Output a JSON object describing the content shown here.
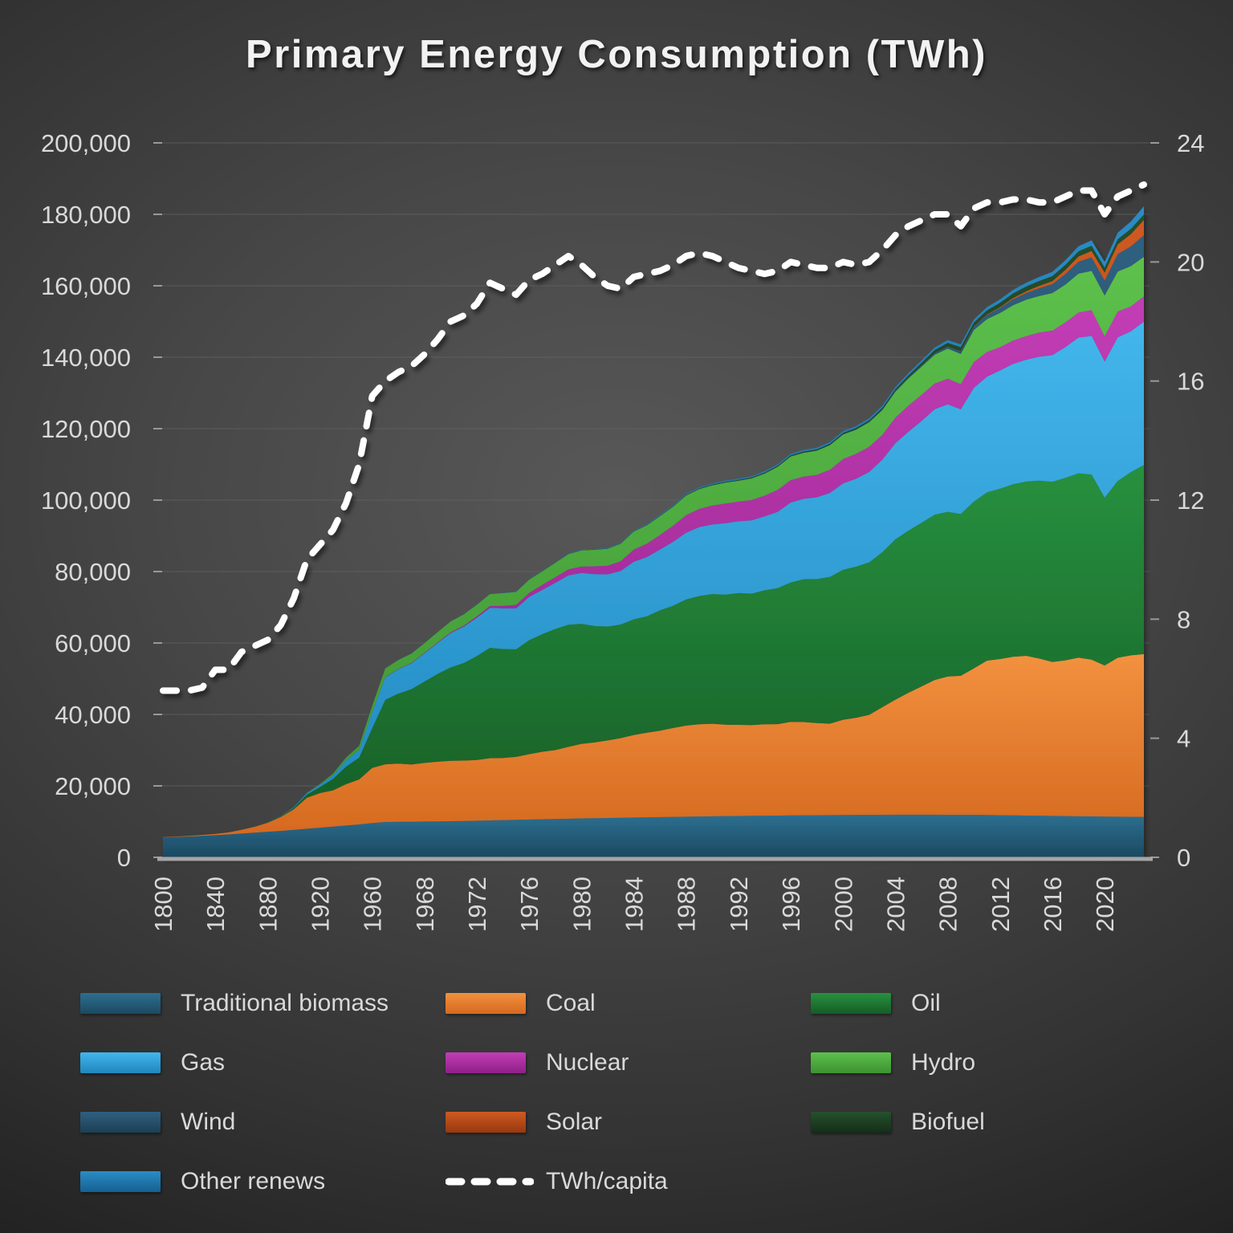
{
  "title": "Primary Energy Consumption (TWh)",
  "chart_data": {
    "type": "area",
    "stacked": true,
    "title": "Primary Energy Consumption (TWh)",
    "grid": true,
    "legend_position": "bottom",
    "x": [
      1800,
      1810,
      1820,
      1830,
      1840,
      1850,
      1860,
      1870,
      1880,
      1890,
      1900,
      1910,
      1920,
      1930,
      1940,
      1950,
      1960,
      1965,
      1966,
      1967,
      1968,
      1969,
      1970,
      1971,
      1972,
      1973,
      1974,
      1975,
      1976,
      1977,
      1978,
      1979,
      1980,
      1981,
      1982,
      1983,
      1984,
      1985,
      1986,
      1987,
      1988,
      1989,
      1990,
      1991,
      1992,
      1993,
      1994,
      1995,
      1996,
      1997,
      1998,
      1999,
      2000,
      2001,
      2002,
      2003,
      2004,
      2005,
      2006,
      2007,
      2008,
      2009,
      2010,
      2011,
      2012,
      2013,
      2014,
      2015,
      2016,
      2017,
      2018,
      2019,
      2020,
      2021,
      2022,
      2023
    ],
    "x_tick_interval": 4,
    "x_tick_labels": [
      "1800",
      "1840",
      "1880",
      "1920",
      "1960",
      "1968",
      "1972",
      "1976",
      "1980",
      "1984",
      "1988",
      "1992",
      "1996",
      "2000",
      "2004",
      "2008",
      "2012",
      "2016",
      "2020"
    ],
    "y_left": {
      "min": 0,
      "max": 200000,
      "tick_step": 20000,
      "tick_labels": [
        "0",
        "20,000",
        "40,000",
        "60,000",
        "80,000",
        "100,000",
        "120,000",
        "140,000",
        "160,000",
        "180,000",
        "200,000"
      ]
    },
    "y_right": {
      "min": 0,
      "max": 24,
      "tick_step": 4,
      "tick_labels": [
        "0",
        "4",
        "8",
        "12",
        "16",
        "20",
        "24"
      ]
    },
    "series": [
      {
        "name": "Traditional biomass",
        "color": "#235f7d",
        "color_top": "#2d6f91",
        "color_bottom": "#1b4961",
        "values": [
          5556,
          5700,
          5850,
          6000,
          6200,
          6400,
          6650,
          6900,
          7150,
          7400,
          7700,
          8000,
          8300,
          8600,
          8900,
          9200,
          9600,
          9900,
          9940,
          9980,
          10020,
          10060,
          10100,
          10180,
          10260,
          10340,
          10420,
          10500,
          10580,
          10660,
          10740,
          10820,
          10900,
          10960,
          11020,
          11080,
          11140,
          11200,
          11260,
          11320,
          11380,
          11440,
          11500,
          11540,
          11580,
          11620,
          11660,
          11700,
          11730,
          11760,
          11790,
          11820,
          11850,
          11870,
          11890,
          11910,
          11930,
          11950,
          11940,
          11930,
          11920,
          11910,
          11900,
          11850,
          11800,
          11750,
          11700,
          11650,
          11600,
          11550,
          11500,
          11450,
          11400,
          11370,
          11340,
          11310
        ]
      },
      {
        "name": "Coal",
        "color": "#ed7d31",
        "color_top": "#f2913f",
        "color_bottom": "#d5691f",
        "values": [
          97,
          128,
          160,
          264,
          356,
          569,
          1060,
          1640,
          2500,
          3860,
          5730,
          8660,
          9670,
          10130,
          11590,
          12600,
          15440,
          16140,
          16300,
          16000,
          16400,
          16700,
          16930,
          16900,
          17000,
          17400,
          17400,
          17620,
          18300,
          18900,
          19300,
          20100,
          20860,
          21200,
          21700,
          22300,
          23100,
          23680,
          24200,
          24900,
          25500,
          25800,
          25900,
          25600,
          25500,
          25400,
          25600,
          25570,
          26200,
          26100,
          25800,
          25600,
          26660,
          27200,
          28000,
          30100,
          32200,
          34120,
          35900,
          37700,
          38700,
          38900,
          41000,
          43200,
          43700,
          44400,
          44700,
          43990,
          43100,
          43600,
          44400,
          43900,
          42300,
          44500,
          45200,
          45560
        ]
      },
      {
        "name": "Oil",
        "color": "#1e7a33",
        "color_top": "#27913f",
        "color_bottom": "#165c26",
        "values": [
          0,
          0,
          0,
          0,
          0,
          0,
          10,
          30,
          90,
          180,
          400,
          890,
          1700,
          3200,
          4900,
          6100,
          11100,
          18050,
          19600,
          21100,
          22800,
          24600,
          26150,
          27300,
          29100,
          30900,
          30500,
          30100,
          31900,
          32900,
          33900,
          34200,
          33600,
          32600,
          31900,
          31800,
          32400,
          32600,
          33700,
          34200,
          35300,
          35900,
          36300,
          36400,
          36900,
          36800,
          37500,
          38100,
          39000,
          40000,
          40300,
          41100,
          42000,
          42300,
          42700,
          43400,
          44900,
          45400,
          45800,
          46300,
          46100,
          45300,
          46700,
          47100,
          47700,
          48300,
          48800,
          49800,
          50400,
          51100,
          51600,
          51800,
          47000,
          49500,
          51300,
          52970
        ]
      },
      {
        "name": "Gas",
        "color": "#2aa7e0",
        "color_top": "#43b6ec",
        "color_bottom": "#1f86bd",
        "values": [
          0,
          0,
          0,
          0,
          0,
          0,
          0,
          0,
          30,
          60,
          180,
          390,
          610,
          1000,
          1750,
          2100,
          4470,
          6310,
          6800,
          7250,
          7900,
          8600,
          9610,
          10200,
          10700,
          11200,
          11400,
          11470,
          12100,
          12400,
          12900,
          13800,
          14240,
          14500,
          14600,
          15000,
          16100,
          16570,
          17000,
          17900,
          18700,
          19300,
          19480,
          20000,
          20100,
          20500,
          20700,
          21350,
          22400,
          22500,
          22900,
          23500,
          24150,
          24600,
          25300,
          25900,
          26900,
          27700,
          28500,
          29500,
          30100,
          29300,
          31800,
          32400,
          33100,
          33700,
          34100,
          34700,
          35500,
          36600,
          38000,
          38800,
          38100,
          40200,
          39400,
          40100
        ]
      },
      {
        "name": "Nuclear",
        "color": "#b02ba5",
        "color_top": "#c33db6",
        "color_bottom": "#8e2088",
        "values": [
          0,
          0,
          0,
          0,
          0,
          0,
          0,
          0,
          0,
          0,
          0,
          0,
          0,
          0,
          0,
          0,
          0,
          70,
          90,
          110,
          140,
          170,
          210,
          290,
          400,
          530,
          680,
          970,
          1150,
          1400,
          1600,
          1700,
          1800,
          2200,
          2400,
          2700,
          3400,
          3750,
          4100,
          4500,
          4900,
          5100,
          5300,
          5500,
          5500,
          5700,
          5800,
          6140,
          6300,
          6200,
          6300,
          6500,
          6820,
          7000,
          7050,
          6950,
          7150,
          7280,
          7330,
          7220,
          7160,
          7050,
          7250,
          6900,
          6500,
          6500,
          6600,
          6770,
          6850,
          6900,
          7000,
          7220,
          7040,
          7250,
          6970,
          7070
        ]
      },
      {
        "name": "Hydro",
        "color": "#4daf3f",
        "color_top": "#5dc14c",
        "color_bottom": "#3d9132",
        "values": [
          0,
          0,
          0,
          0,
          0,
          0,
          0,
          0,
          0,
          10,
          40,
          100,
          230,
          500,
          800,
          1200,
          1800,
          2420,
          2520,
          2590,
          2720,
          2900,
          3030,
          3140,
          3250,
          3300,
          3570,
          3630,
          3700,
          3810,
          4000,
          4250,
          4530,
          4640,
          4750,
          4940,
          5060,
          5140,
          5250,
          5330,
          5520,
          5550,
          5680,
          5850,
          5850,
          6050,
          6150,
          6470,
          6600,
          6700,
          6750,
          6870,
          6880,
          6750,
          6870,
          6940,
          7270,
          7630,
          7900,
          8030,
          8440,
          8480,
          8970,
          9190,
          9600,
          9900,
          10200,
          10220,
          10500,
          10600,
          10900,
          11000,
          11440,
          11180,
          11300,
          11080
        ]
      },
      {
        "name": "Wind",
        "color": "#27506b",
        "color_top": "#2f6080",
        "color_bottom": "#1d3f55",
        "values": [
          0,
          0,
          0,
          0,
          0,
          0,
          0,
          0,
          0,
          0,
          0,
          0,
          0,
          0,
          0,
          0,
          0,
          0,
          0,
          0,
          0,
          0,
          0,
          0,
          0,
          0,
          0,
          0,
          0,
          0,
          0,
          0,
          0,
          0,
          0,
          0,
          0,
          1,
          2,
          3,
          5,
          7,
          10,
          11,
          12,
          14,
          18,
          21,
          24,
          31,
          42,
          56,
          82,
          100,
          137,
          167,
          224,
          274,
          350,
          450,
          580,
          720,
          910,
          1160,
          1380,
          1660,
          1860,
          2190,
          2500,
          2950,
          3330,
          3770,
          4190,
          4870,
          5490,
          6060
        ]
      },
      {
        "name": "Solar",
        "color": "#bc4a17",
        "color_top": "#cf5a21",
        "color_bottom": "#97380f",
        "values": [
          0,
          0,
          0,
          0,
          0,
          0,
          0,
          0,
          0,
          0,
          0,
          0,
          0,
          0,
          0,
          0,
          0,
          0,
          0,
          0,
          0,
          0,
          0,
          0,
          0,
          0,
          0,
          0,
          0,
          0,
          0,
          0,
          0,
          0,
          0,
          0,
          0,
          0,
          0,
          0,
          0,
          0,
          0,
          0,
          0,
          0,
          0,
          0,
          0,
          0,
          0,
          0,
          3,
          4,
          5,
          7,
          9,
          11,
          15,
          21,
          33,
          55,
          84,
          160,
          250,
          360,
          500,
          670,
          850,
          1140,
          1470,
          1800,
          2220,
          2760,
          3450,
          4290
        ]
      },
      {
        "name": "Biofuel",
        "color": "#1d4023",
        "color_top": "#25512c",
        "color_bottom": "#142e19",
        "values": [
          0,
          0,
          0,
          0,
          0,
          0,
          0,
          0,
          0,
          0,
          0,
          0,
          0,
          0,
          0,
          0,
          0,
          0,
          0,
          0,
          0,
          0,
          0,
          0,
          0,
          0,
          0,
          30,
          40,
          45,
          50,
          55,
          60,
          70,
          75,
          80,
          95,
          110,
          120,
          135,
          150,
          165,
          180,
          195,
          210,
          225,
          240,
          250,
          270,
          290,
          310,
          330,
          350,
          360,
          390,
          430,
          490,
          560,
          690,
          830,
          990,
          1080,
          1100,
          1170,
          1230,
          1290,
          1330,
          1350,
          1390,
          1420,
          1450,
          1470,
          1400,
          1430,
          1470,
          1500
        ]
      },
      {
        "name": "Other renews",
        "color": "#1d7ab2",
        "color_top": "#2b8cc6",
        "color_bottom": "#156091",
        "values": [
          0,
          0,
          0,
          0,
          0,
          0,
          0,
          0,
          0,
          0,
          0,
          0,
          0,
          0,
          0,
          0,
          20,
          30,
          33,
          36,
          39,
          45,
          50,
          55,
          60,
          66,
          73,
          80,
          88,
          97,
          106,
          118,
          130,
          145,
          160,
          175,
          192,
          210,
          230,
          250,
          275,
          300,
          330,
          350,
          370,
          390,
          410,
          430,
          450,
          470,
          490,
          515,
          540,
          560,
          580,
          600,
          625,
          650,
          690,
          730,
          770,
          810,
          850,
          900,
          950,
          1000,
          1060,
          1130,
          1220,
          1310,
          1410,
          1520,
          1630,
          1800,
          2050,
          2300
        ]
      }
    ],
    "line": {
      "name": "TWh/capita",
      "axis": "right",
      "color": "#ffffff",
      "style": "dashed",
      "values": [
        5.6,
        5.6,
        5.6,
        5.7,
        6.3,
        6.3,
        6.9,
        7.1,
        7.3,
        7.8,
        8.7,
        10.0,
        10.5,
        11.0,
        11.9,
        13.2,
        15.5,
        16.0,
        16.3,
        16.5,
        16.9,
        17.4,
        18.0,
        18.2,
        18.6,
        19.3,
        19.1,
        18.9,
        19.4,
        19.6,
        19.9,
        20.2,
        19.9,
        19.5,
        19.2,
        19.1,
        19.5,
        19.6,
        19.7,
        19.9,
        20.2,
        20.3,
        20.2,
        20.0,
        19.8,
        19.7,
        19.6,
        19.7,
        20.0,
        19.9,
        19.8,
        19.8,
        20.0,
        19.9,
        20.0,
        20.4,
        20.9,
        21.2,
        21.4,
        21.6,
        21.6,
        21.2,
        21.8,
        22.0,
        22.0,
        22.1,
        22.1,
        22.0,
        22.0,
        22.2,
        22.4,
        22.4,
        21.6,
        22.2,
        22.4,
        22.6
      ]
    }
  },
  "legend": {
    "items": [
      {
        "label": "Traditional biomass",
        "type": "swatch",
        "series": 0
      },
      {
        "label": "Coal",
        "type": "swatch",
        "series": 1
      },
      {
        "label": "Oil",
        "type": "swatch",
        "series": 2
      },
      {
        "label": "Gas",
        "type": "swatch",
        "series": 3
      },
      {
        "label": "Nuclear",
        "type": "swatch",
        "series": 4
      },
      {
        "label": "Hydro",
        "type": "swatch",
        "series": 5
      },
      {
        "label": "Wind",
        "type": "swatch",
        "series": 6
      },
      {
        "label": "Solar",
        "type": "swatch",
        "series": 7
      },
      {
        "label": "Biofuel",
        "type": "swatch",
        "series": 8
      },
      {
        "label": "Other renews",
        "type": "swatch",
        "series": 9
      },
      {
        "label": "TWh/capita",
        "type": "dashed-line",
        "color": "#ffffff"
      }
    ]
  },
  "colors": {
    "axis_text": "#d9d9d9",
    "gridline": "#666666",
    "baseline": "#a6a6a6",
    "tick": "#999999",
    "title_text": "#f2f2f2"
  }
}
